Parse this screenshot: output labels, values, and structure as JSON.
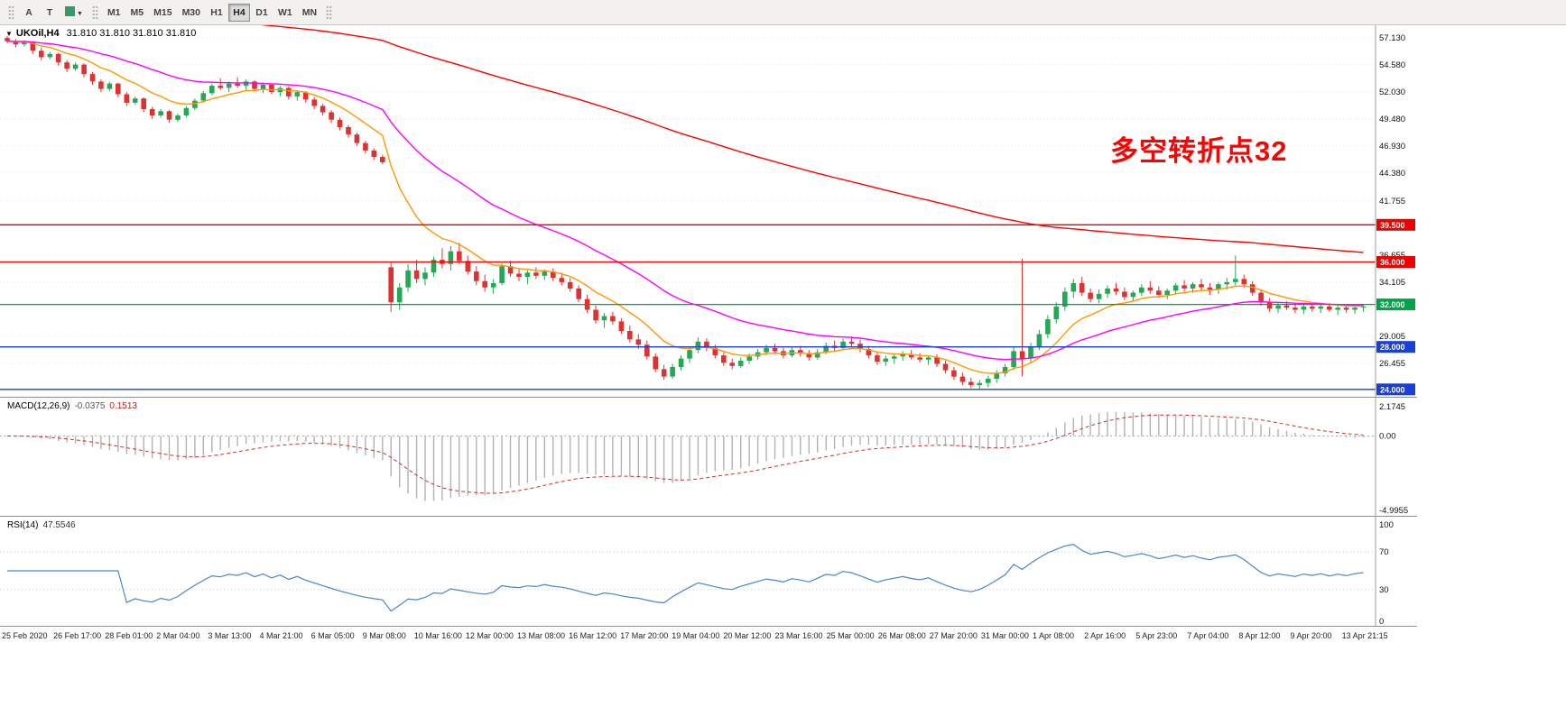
{
  "toolbar": {
    "tools": [
      {
        "name": "pointer-tool",
        "label": "A"
      },
      {
        "name": "text-tool",
        "label": "T"
      },
      {
        "name": "line-style-tool",
        "label": "▼"
      }
    ],
    "timeframes": [
      "M1",
      "M5",
      "M15",
      "M30",
      "H1",
      "H4",
      "D1",
      "W1",
      "MN"
    ],
    "active_timeframe": "H4"
  },
  "header": {
    "marker": "▼",
    "symbol_title": "UKOil,H4",
    "ohlc_text": "31.810 31.810 31.810 31.810"
  },
  "chart_data": {
    "type": "candlestick",
    "symbol": "UKOil",
    "timeframe": "H4",
    "current_ohlc": [
      31.81,
      31.81,
      31.81,
      31.81
    ],
    "price_range": [
      23.3,
      58.3
    ],
    "annotation": {
      "text": "多空转折点32",
      "color": "#ff0000"
    },
    "colors": {
      "up": "#23a854",
      "down": "#e03131"
    },
    "y_axis": {
      "labels": [
        {
          "v": 57.13,
          "label": "57.130"
        },
        {
          "v": 54.58,
          "label": "54.580"
        },
        {
          "v": 52.03,
          "label": "52.030"
        },
        {
          "v": 49.48,
          "label": "49.480"
        },
        {
          "v": 46.93,
          "label": "46.930"
        },
        {
          "v": 44.38,
          "label": "44.380"
        },
        {
          "v": 41.755,
          "label": "41.755"
        },
        {
          "v": 36.655,
          "label": "36.655"
        },
        {
          "v": 34.105,
          "label": "34.105"
        },
        {
          "v": 29.005,
          "label": "29.005"
        },
        {
          "v": 26.455,
          "label": "26.455"
        }
      ]
    },
    "horizontal_levels": [
      {
        "price": 39.5,
        "label": "39.500",
        "color": "#ee0000"
      },
      {
        "price": 36.0,
        "label": "36.000",
        "color": "#ee0000"
      },
      {
        "price": 32.0,
        "label": "32.000",
        "color": "#00a24a"
      },
      {
        "price": 28.0,
        "label": "28.000",
        "color": "#1a3fd4"
      },
      {
        "price": 24.0,
        "label": "24.000",
        "color": "#1a3fd4"
      }
    ],
    "x_axis": {
      "labels": [
        "25 Feb 2020",
        "26 Feb 17:00",
        "28 Feb 01:00",
        "2 Mar 04:00",
        "3 Mar 13:00",
        "4 Mar 21:00",
        "6 Mar 05:00",
        "9 Mar 08:00",
        "10 Mar 16:00",
        "12 Mar 00:00",
        "13 Mar 08:00",
        "16 Mar 12:00",
        "17 Mar 20:00",
        "19 Mar 04:00",
        "20 Mar 12:00",
        "23 Mar 16:00",
        "25 Mar 00:00",
        "26 Mar 08:00",
        "27 Mar 20:00",
        "31 Mar 00:00",
        "1 Apr 08:00",
        "2 Apr 16:00",
        "5 Apr 23:00",
        "7 Apr 04:00",
        "8 Apr 12:00",
        "9 Apr 20:00",
        "13 Apr 21:15"
      ]
    },
    "moving_averages": [
      {
        "period": 10,
        "color": "#ff9900"
      },
      {
        "period": 30,
        "color": "#ff00ff"
      },
      {
        "period": 160,
        "color": "#ff0000",
        "seed": 61
      }
    ],
    "indicators": [
      {
        "type": "MACD",
        "label": "MACD(12,26,9)",
        "params": [
          12,
          26,
          9
        ],
        "value_text": "-0.0375",
        "signal_text": "0.1513",
        "axis": [
          "2.1745",
          "0.00",
          "-4.9955"
        ]
      },
      {
        "type": "RSI",
        "label": "RSI(14)",
        "params": [
          14
        ],
        "value_text": "47.5546",
        "levels": [
          70,
          30
        ],
        "axis": [
          "100",
          "70",
          "30",
          "0"
        ]
      }
    ],
    "candles": [
      [
        57.1,
        57.3,
        56.6,
        56.8
      ],
      [
        56.8,
        57.0,
        56.2,
        56.5
      ],
      [
        56.5,
        56.9,
        56.3,
        56.7
      ],
      [
        56.7,
        56.8,
        55.6,
        55.9
      ],
      [
        55.9,
        56.2,
        55.0,
        55.3
      ],
      [
        55.3,
        55.8,
        55.1,
        55.6
      ],
      [
        55.6,
        55.7,
        54.5,
        54.8
      ],
      [
        54.8,
        55.0,
        53.9,
        54.2
      ],
      [
        54.2,
        54.8,
        54.0,
        54.6
      ],
      [
        54.6,
        54.7,
        53.4,
        53.7
      ],
      [
        53.7,
        53.9,
        52.7,
        53.0
      ],
      [
        53.0,
        53.2,
        52.0,
        52.3
      ],
      [
        52.3,
        53.0,
        52.1,
        52.8
      ],
      [
        52.8,
        52.9,
        51.5,
        51.8
      ],
      [
        51.8,
        52.0,
        50.7,
        51.0
      ],
      [
        51.0,
        51.6,
        50.8,
        51.4
      ],
      [
        51.4,
        51.5,
        50.1,
        50.4
      ],
      [
        50.4,
        50.6,
        49.5,
        49.8
      ],
      [
        49.8,
        50.4,
        49.6,
        50.2
      ],
      [
        50.2,
        50.3,
        49.1,
        49.4
      ],
      [
        49.4,
        50.0,
        49.2,
        49.8
      ],
      [
        49.8,
        50.7,
        49.6,
        50.5
      ],
      [
        50.5,
        51.4,
        50.3,
        51.2
      ],
      [
        51.2,
        52.1,
        51.0,
        51.9
      ],
      [
        51.9,
        52.8,
        51.7,
        52.6
      ],
      [
        52.6,
        53.3,
        52.2,
        52.4
      ],
      [
        52.4,
        53.0,
        52.0,
        52.8
      ],
      [
        52.8,
        53.4,
        52.4,
        52.6
      ],
      [
        52.6,
        53.2,
        52.2,
        53.0
      ],
      [
        53.0,
        53.1,
        52.1,
        52.3
      ],
      [
        52.3,
        52.9,
        51.9,
        52.7
      ],
      [
        52.7,
        52.8,
        51.8,
        52.0
      ],
      [
        52.0,
        52.6,
        51.6,
        52.4
      ],
      [
        52.4,
        52.5,
        51.3,
        51.6
      ],
      [
        51.6,
        52.2,
        51.2,
        52.0
      ],
      [
        52.0,
        52.1,
        51.0,
        51.3
      ],
      [
        51.3,
        51.5,
        50.4,
        50.7
      ],
      [
        50.7,
        50.9,
        49.8,
        50.1
      ],
      [
        50.1,
        50.3,
        49.1,
        49.4
      ],
      [
        49.4,
        49.6,
        48.4,
        48.7
      ],
      [
        48.7,
        48.9,
        47.7,
        48.0
      ],
      [
        48.0,
        48.2,
        46.9,
        47.2
      ],
      [
        47.2,
        47.4,
        46.2,
        46.5
      ],
      [
        46.5,
        46.7,
        45.6,
        45.9
      ],
      [
        45.9,
        46.1,
        45.2,
        45.4
      ],
      [
        35.5,
        36.0,
        31.3,
        32.2
      ],
      [
        32.2,
        34.0,
        31.5,
        33.6
      ],
      [
        33.6,
        35.8,
        33.2,
        35.2
      ],
      [
        35.2,
        36.2,
        34.0,
        34.4
      ],
      [
        34.4,
        35.5,
        33.8,
        35.0
      ],
      [
        35.0,
        36.5,
        34.6,
        36.2
      ],
      [
        36.2,
        37.3,
        35.4,
        35.8
      ],
      [
        35.8,
        37.5,
        35.2,
        37.0
      ],
      [
        37.0,
        37.8,
        35.8,
        36.1
      ],
      [
        36.1,
        36.6,
        34.8,
        35.1
      ],
      [
        35.1,
        35.6,
        33.8,
        34.2
      ],
      [
        34.2,
        34.8,
        33.2,
        33.6
      ],
      [
        33.6,
        34.4,
        33.0,
        34.0
      ],
      [
        34.0,
        35.9,
        33.8,
        35.6
      ],
      [
        35.6,
        36.1,
        34.6,
        34.9
      ],
      [
        34.9,
        35.4,
        34.2,
        34.6
      ],
      [
        34.6,
        35.2,
        33.9,
        35.0
      ],
      [
        35.0,
        35.5,
        34.4,
        34.7
      ],
      [
        34.7,
        35.3,
        34.3,
        35.1
      ],
      [
        35.1,
        35.4,
        34.2,
        34.5
      ],
      [
        34.5,
        35.0,
        33.8,
        34.1
      ],
      [
        34.1,
        34.5,
        33.2,
        33.5
      ],
      [
        33.5,
        33.8,
        32.2,
        32.5
      ],
      [
        32.5,
        32.9,
        31.2,
        31.5
      ],
      [
        31.5,
        31.9,
        30.2,
        30.5
      ],
      [
        30.5,
        31.2,
        29.8,
        30.9
      ],
      [
        30.9,
        31.3,
        30.1,
        30.4
      ],
      [
        30.4,
        30.7,
        29.2,
        29.5
      ],
      [
        29.5,
        30.0,
        28.4,
        28.7
      ],
      [
        28.7,
        29.2,
        27.8,
        28.2
      ],
      [
        28.2,
        28.6,
        26.8,
        27.1
      ],
      [
        27.1,
        27.4,
        25.6,
        25.9
      ],
      [
        25.9,
        26.3,
        24.9,
        25.2
      ],
      [
        25.2,
        26.4,
        25.0,
        26.1
      ],
      [
        26.1,
        27.2,
        25.8,
        26.9
      ],
      [
        26.9,
        28.0,
        26.5,
        27.7
      ],
      [
        27.7,
        28.9,
        27.4,
        28.5
      ],
      [
        28.5,
        28.8,
        27.6,
        27.9
      ],
      [
        27.9,
        28.2,
        26.9,
        27.2
      ],
      [
        27.2,
        27.5,
        26.2,
        26.5
      ],
      [
        26.5,
        26.9,
        25.9,
        26.2
      ],
      [
        26.2,
        27.0,
        26.0,
        26.7
      ],
      [
        26.7,
        27.4,
        26.4,
        27.1
      ],
      [
        27.1,
        27.8,
        26.8,
        27.5
      ],
      [
        27.5,
        28.2,
        27.2,
        27.9
      ],
      [
        27.9,
        28.3,
        27.3,
        27.6
      ],
      [
        27.6,
        27.9,
        26.9,
        27.2
      ],
      [
        27.2,
        28.0,
        27.0,
        27.7
      ],
      [
        27.7,
        28.1,
        27.1,
        27.4
      ],
      [
        27.4,
        27.7,
        26.7,
        27.0
      ],
      [
        27.0,
        27.8,
        26.8,
        27.5
      ],
      [
        27.5,
        28.4,
        27.3,
        28.1
      ],
      [
        28.1,
        28.6,
        27.6,
        27.9
      ],
      [
        27.9,
        28.8,
        27.7,
        28.5
      ],
      [
        28.5,
        29.0,
        28.0,
        28.3
      ],
      [
        28.3,
        28.7,
        27.5,
        27.8
      ],
      [
        27.8,
        28.1,
        26.9,
        27.2
      ],
      [
        27.2,
        27.5,
        26.3,
        26.6
      ],
      [
        26.6,
        27.2,
        26.2,
        26.9
      ],
      [
        26.9,
        27.3,
        26.4,
        27.1
      ],
      [
        27.1,
        27.6,
        26.7,
        27.3
      ],
      [
        27.3,
        27.7,
        26.8,
        27.0
      ],
      [
        27.0,
        27.4,
        26.5,
        26.8
      ],
      [
        26.8,
        27.2,
        26.3,
        27.0
      ],
      [
        27.0,
        27.3,
        26.1,
        26.4
      ],
      [
        26.4,
        26.7,
        25.5,
        25.8
      ],
      [
        25.8,
        26.1,
        24.9,
        25.2
      ],
      [
        25.2,
        25.6,
        24.4,
        24.7
      ],
      [
        24.7,
        25.1,
        24.1,
        24.4
      ],
      [
        24.4,
        24.9,
        24.0,
        24.6
      ],
      [
        24.6,
        25.3,
        24.2,
        25.0
      ],
      [
        25.0,
        25.8,
        24.6,
        25.5
      ],
      [
        25.5,
        26.4,
        25.2,
        26.1
      ],
      [
        26.1,
        28.0,
        25.8,
        27.6
      ],
      [
        27.6,
        36.3,
        25.2,
        26.9
      ],
      [
        26.9,
        28.4,
        26.5,
        28.0
      ],
      [
        28.0,
        29.6,
        27.7,
        29.2
      ],
      [
        29.2,
        31.0,
        28.8,
        30.6
      ],
      [
        30.6,
        32.2,
        30.2,
        31.8
      ],
      [
        31.8,
        33.6,
        31.4,
        33.2
      ],
      [
        33.2,
        34.4,
        32.6,
        34.0
      ],
      [
        34.0,
        34.6,
        32.8,
        33.1
      ],
      [
        33.1,
        33.5,
        32.2,
        32.5
      ],
      [
        32.5,
        33.4,
        32.1,
        33.0
      ],
      [
        33.0,
        33.8,
        32.6,
        33.5
      ],
      [
        33.5,
        34.0,
        32.9,
        33.2
      ],
      [
        33.2,
        33.6,
        32.4,
        32.7
      ],
      [
        32.7,
        33.3,
        32.3,
        33.1
      ],
      [
        33.1,
        33.9,
        32.8,
        33.6
      ],
      [
        33.6,
        34.2,
        33.0,
        33.3
      ],
      [
        33.3,
        33.7,
        32.6,
        32.9
      ],
      [
        32.9,
        33.5,
        32.5,
        33.3
      ],
      [
        33.3,
        34.0,
        33.0,
        33.8
      ],
      [
        33.8,
        34.3,
        33.2,
        33.5
      ],
      [
        33.5,
        34.1,
        33.1,
        33.9
      ],
      [
        33.9,
        34.4,
        33.3,
        33.6
      ],
      [
        33.6,
        34.0,
        32.9,
        33.4
      ],
      [
        33.4,
        34.1,
        33.0,
        33.9
      ],
      [
        33.9,
        34.5,
        33.4,
        34.1
      ],
      [
        34.1,
        36.6,
        33.8,
        34.4
      ],
      [
        34.4,
        34.8,
        33.6,
        33.9
      ],
      [
        33.9,
        34.2,
        32.8,
        33.1
      ],
      [
        33.1,
        33.4,
        31.9,
        32.2
      ],
      [
        32.2,
        32.6,
        31.3,
        31.6
      ],
      [
        31.6,
        32.2,
        31.2,
        31.9
      ],
      [
        31.9,
        32.3,
        31.5,
        31.7
      ],
      [
        31.7,
        32.1,
        31.2,
        31.5
      ],
      [
        31.5,
        32.0,
        31.1,
        31.8
      ],
      [
        31.8,
        32.2,
        31.3,
        31.6
      ],
      [
        31.6,
        32.0,
        31.2,
        31.8
      ],
      [
        31.8,
        32.1,
        31.3,
        31.5
      ],
      [
        31.5,
        31.9,
        31.0,
        31.7
      ],
      [
        31.7,
        32.0,
        31.2,
        31.5
      ],
      [
        31.5,
        31.9,
        31.1,
        31.7
      ],
      [
        31.7,
        32.0,
        31.3,
        31.81
      ]
    ]
  }
}
